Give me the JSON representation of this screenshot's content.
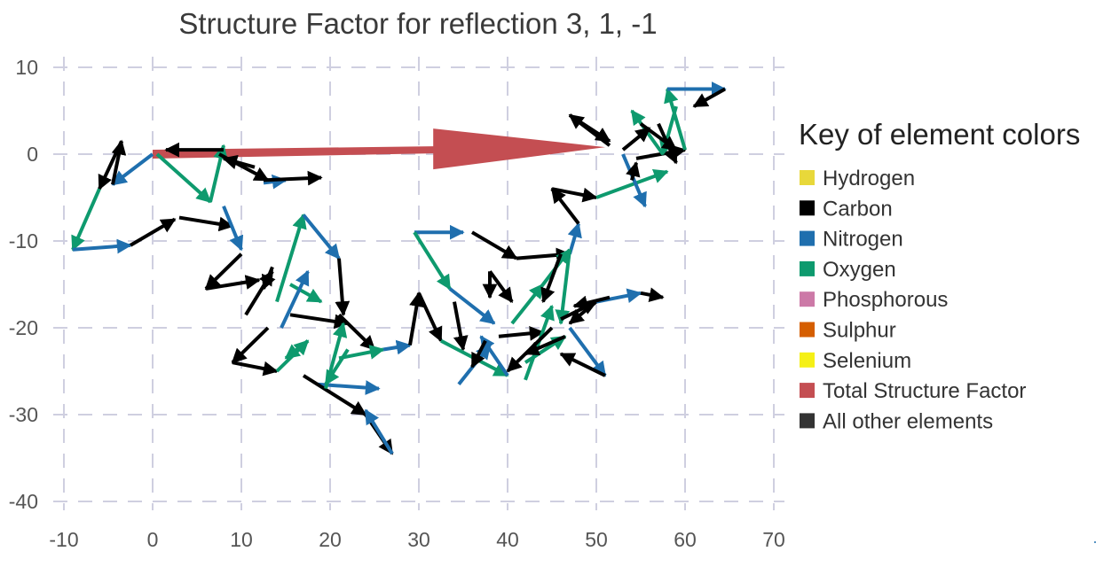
{
  "chart_data": {
    "type": "scatter",
    "title": "Structure Factor for reflection 3, 1, -1",
    "xlim": [
      -10,
      70
    ],
    "ylim": [
      -40,
      10
    ],
    "x_ticks": [
      -10,
      0,
      10,
      20,
      30,
      40,
      50,
      60,
      70
    ],
    "y_ticks": [
      10,
      0,
      -10,
      -20,
      -30,
      -40
    ],
    "x_tick_labels": [
      "-10",
      "0",
      "10",
      "20",
      "30",
      "40",
      "50",
      "60",
      "70"
    ],
    "y_tick_labels": [
      "10",
      "0",
      "-10",
      "-20",
      "-30",
      "-40"
    ],
    "grid": true,
    "legend": {
      "title": "Key of element colors",
      "placement": "right",
      "entries": [
        {
          "label": "Hydrogen",
          "color": "#e8d83a"
        },
        {
          "label": "Carbon",
          "color": "#000000"
        },
        {
          "label": "Nitrogen",
          "color": "#1f6fae"
        },
        {
          "label": "Oxygen",
          "color": "#0e9a6e"
        },
        {
          "label": "Phosphorous",
          "color": "#cc79a7"
        },
        {
          "label": "Sulphur",
          "color": "#d55e00"
        },
        {
          "label": "Selenium",
          "color": "#f5f016"
        },
        {
          "label": "Total Structure Factor",
          "color": "#c44e52"
        },
        {
          "label": "All other elements",
          "color": "#333333"
        }
      ]
    },
    "total_vector": {
      "from": [
        0,
        0
      ],
      "to": [
        51,
        0.8
      ],
      "color": "#c44e52"
    },
    "atom_vectors": [
      {
        "x0": 0,
        "y0": 0,
        "x1": -4.5,
        "y1": -3.5,
        "element": "Nitrogen"
      },
      {
        "x0": -4.5,
        "y0": -3.5,
        "x1": -3.5,
        "y1": 1.5,
        "element": "Carbon"
      },
      {
        "x0": -3.5,
        "y0": 1.5,
        "x1": -6,
        "y1": -4,
        "element": "Carbon"
      },
      {
        "x0": -6,
        "y0": -4,
        "x1": -9,
        "y1": -11,
        "element": "Oxygen"
      },
      {
        "x0": -9,
        "y0": -11,
        "x1": -2.5,
        "y1": -10.5,
        "element": "Nitrogen"
      },
      {
        "x0": -2.5,
        "y0": -10.5,
        "x1": 2.5,
        "y1": -7.5,
        "element": "Carbon"
      },
      {
        "x0": 3,
        "y0": -7.3,
        "x1": 9,
        "y1": -8.3,
        "element": "Carbon"
      },
      {
        "x0": 0.5,
        "y0": 0,
        "x1": 6.5,
        "y1": -5.5,
        "element": "Oxygen"
      },
      {
        "x0": 6.5,
        "y0": -5.5,
        "x1": 8,
        "y1": 1,
        "element": "Oxygen"
      },
      {
        "x0": 8,
        "y0": 0.5,
        "x1": 1.5,
        "y1": 0.5,
        "element": "Carbon"
      },
      {
        "x0": 7.5,
        "y0": 0,
        "x1": 13,
        "y1": -3,
        "element": "Carbon"
      },
      {
        "x0": 11.5,
        "y0": -1.5,
        "x1": 8,
        "y1": -0.5,
        "element": "Carbon"
      },
      {
        "x0": 12.5,
        "y0": -3.3,
        "x1": 15,
        "y1": -3,
        "element": "Nitrogen"
      },
      {
        "x0": 12.5,
        "y0": -3,
        "x1": 19,
        "y1": -2.7,
        "element": "Carbon"
      },
      {
        "x0": 8,
        "y0": -6,
        "x1": 10,
        "y1": -11,
        "element": "Nitrogen"
      },
      {
        "x0": 10,
        "y0": -11.5,
        "x1": 6,
        "y1": -15.5,
        "element": "Carbon"
      },
      {
        "x0": 6,
        "y0": -15.5,
        "x1": 12,
        "y1": -14.5,
        "element": "Carbon"
      },
      {
        "x0": 10.5,
        "y0": -18.5,
        "x1": 13.5,
        "y1": -13.5,
        "element": "Carbon"
      },
      {
        "x0": 13.5,
        "y0": -13,
        "x1": 12.5,
        "y1": -15.5,
        "element": "Carbon"
      },
      {
        "x0": 14,
        "y0": -17,
        "x1": 17,
        "y1": -7,
        "element": "Oxygen"
      },
      {
        "x0": 17,
        "y0": -7,
        "x1": 21,
        "y1": -12,
        "element": "Nitrogen"
      },
      {
        "x0": 21,
        "y0": -12,
        "x1": 21.5,
        "y1": -18.5,
        "element": "Carbon"
      },
      {
        "x0": 21,
        "y0": -18.5,
        "x1": 25,
        "y1": -22.5,
        "element": "Carbon"
      },
      {
        "x0": 15.5,
        "y0": -15,
        "x1": 19,
        "y1": -17,
        "element": "Oxygen"
      },
      {
        "x0": 14.5,
        "y0": -20,
        "x1": 17.5,
        "y1": -13.5,
        "element": "Nitrogen"
      },
      {
        "x0": 15.5,
        "y0": -18.5,
        "x1": 22,
        "y1": -19.5,
        "element": "Carbon"
      },
      {
        "x0": 13,
        "y0": -20,
        "x1": 9,
        "y1": -24,
        "element": "Carbon"
      },
      {
        "x0": 9,
        "y0": -24,
        "x1": 14,
        "y1": -25,
        "element": "Carbon"
      },
      {
        "x0": 14,
        "y0": -25,
        "x1": 17.5,
        "y1": -21.5,
        "element": "Oxygen"
      },
      {
        "x0": 17.5,
        "y0": -21.5,
        "x1": 15,
        "y1": -23.5,
        "element": "Oxygen"
      },
      {
        "x0": 18.5,
        "y0": -26.5,
        "x1": 25.5,
        "y1": -27,
        "element": "Nitrogen"
      },
      {
        "x0": 17,
        "y0": -25.5,
        "x1": 24,
        "y1": -30,
        "element": "Carbon"
      },
      {
        "x0": 24,
        "y0": -30,
        "x1": 27,
        "y1": -34.5,
        "element": "Carbon"
      },
      {
        "x0": 27,
        "y0": -34.5,
        "x1": 24,
        "y1": -29.5,
        "element": "Nitrogen"
      },
      {
        "x0": 19.5,
        "y0": -27,
        "x1": 21.5,
        "y1": -19.5,
        "element": "Oxygen"
      },
      {
        "x0": 22,
        "y0": -22.5,
        "x1": 19.5,
        "y1": -26.5,
        "element": "Oxygen"
      },
      {
        "x0": 21,
        "y0": -23.5,
        "x1": 26,
        "y1": -22.5,
        "element": "Oxygen"
      },
      {
        "x0": 26,
        "y0": -22.5,
        "x1": 29,
        "y1": -22,
        "element": "Nitrogen"
      },
      {
        "x0": 29,
        "y0": -22,
        "x1": 30,
        "y1": -16,
        "element": "Carbon"
      },
      {
        "x0": 30,
        "y0": -16,
        "x1": 32.5,
        "y1": -21.5,
        "element": "Carbon"
      },
      {
        "x0": 29.5,
        "y0": -9,
        "x1": 35,
        "y1": -9,
        "element": "Nitrogen"
      },
      {
        "x0": 29.5,
        "y0": -9,
        "x1": 33.5,
        "y1": -15.5,
        "element": "Oxygen"
      },
      {
        "x0": 33.5,
        "y0": -15.5,
        "x1": 38.5,
        "y1": -19.5,
        "element": "Nitrogen"
      },
      {
        "x0": 36,
        "y0": -9,
        "x1": 41,
        "y1": -12,
        "element": "Carbon"
      },
      {
        "x0": 41,
        "y0": -12,
        "x1": 47,
        "y1": -11.5,
        "element": "Carbon"
      },
      {
        "x0": 47,
        "y0": -11.5,
        "x1": 48,
        "y1": -8,
        "element": "Nitrogen"
      },
      {
        "x0": 48,
        "y0": -8,
        "x1": 45,
        "y1": -4,
        "element": "Carbon"
      },
      {
        "x0": 45,
        "y0": -4,
        "x1": 50,
        "y1": -5,
        "element": "Carbon"
      },
      {
        "x0": 50,
        "y0": -5,
        "x1": 58,
        "y1": -2,
        "element": "Oxygen"
      },
      {
        "x0": 34,
        "y0": -17,
        "x1": 35,
        "y1": -22.5,
        "element": "Carbon"
      },
      {
        "x0": 32.5,
        "y0": -21.5,
        "x1": 40,
        "y1": -25.5,
        "element": "Oxygen"
      },
      {
        "x0": 40,
        "y0": -25.5,
        "x1": 37,
        "y1": -21,
        "element": "Nitrogen"
      },
      {
        "x0": 34.5,
        "y0": -26.5,
        "x1": 38,
        "y1": -22,
        "element": "Nitrogen"
      },
      {
        "x0": 37.5,
        "y0": -21.5,
        "x1": 36,
        "y1": -24.5,
        "element": "Carbon"
      },
      {
        "x0": 38,
        "y0": -13.5,
        "x1": 40.5,
        "y1": -17,
        "element": "Carbon"
      },
      {
        "x0": 38,
        "y0": -13.5,
        "x1": 38,
        "y1": -16.5,
        "element": "Carbon"
      },
      {
        "x0": 39,
        "y0": -21,
        "x1": 44,
        "y1": -20.5,
        "element": "Carbon"
      },
      {
        "x0": 42,
        "y0": -26,
        "x1": 45,
        "y1": -17.5,
        "element": "Oxygen"
      },
      {
        "x0": 40.5,
        "y0": -19.5,
        "x1": 44,
        "y1": -15,
        "element": "Oxygen"
      },
      {
        "x0": 44,
        "y0": -15,
        "x1": 47,
        "y1": -11,
        "element": "Oxygen"
      },
      {
        "x0": 46,
        "y0": -11.5,
        "x1": 44,
        "y1": -17,
        "element": "Carbon"
      },
      {
        "x0": 47,
        "y0": -11,
        "x1": 46,
        "y1": -19.5,
        "element": "Oxygen"
      },
      {
        "x0": 42,
        "y0": -24,
        "x1": 46.5,
        "y1": -21,
        "element": "Oxygen"
      },
      {
        "x0": 46.5,
        "y0": -21,
        "x1": 42,
        "y1": -23,
        "element": "Carbon"
      },
      {
        "x0": 45,
        "y0": -20,
        "x1": 40,
        "y1": -25,
        "element": "Carbon"
      },
      {
        "x0": 47,
        "y0": -20,
        "x1": 51,
        "y1": -25.5,
        "element": "Nitrogen"
      },
      {
        "x0": 51,
        "y0": -25.5,
        "x1": 46,
        "y1": -23,
        "element": "Carbon"
      },
      {
        "x0": 46,
        "y0": -19,
        "x1": 50,
        "y1": -17,
        "element": "Carbon"
      },
      {
        "x0": 50,
        "y0": -17,
        "x1": 47,
        "y1": -19.5,
        "element": "Carbon"
      },
      {
        "x0": 50,
        "y0": -17,
        "x1": 55,
        "y1": -16,
        "element": "Nitrogen"
      },
      {
        "x0": 55,
        "y0": -16,
        "x1": 57.5,
        "y1": -16.5,
        "element": "Carbon"
      },
      {
        "x0": 51.5,
        "y0": -16.5,
        "x1": 47.5,
        "y1": -17.5,
        "element": "Carbon"
      },
      {
        "x0": 53,
        "y0": 0,
        "x1": 55.5,
        "y1": -6,
        "element": "Nitrogen"
      },
      {
        "x0": 54,
        "y0": -3,
        "x1": 54.5,
        "y1": -1,
        "element": "Carbon"
      },
      {
        "x0": 54.5,
        "y0": -0.5,
        "x1": 60,
        "y1": 0.5,
        "element": "Carbon"
      },
      {
        "x0": 60,
        "y0": 0.5,
        "x1": 58,
        "y1": 7.5,
        "element": "Oxygen"
      },
      {
        "x0": 58,
        "y0": 7.5,
        "x1": 64.5,
        "y1": 7.5,
        "element": "Nitrogen"
      },
      {
        "x0": 64.5,
        "y0": 7.5,
        "x1": 61,
        "y1": 5.5,
        "element": "Carbon"
      },
      {
        "x0": 59,
        "y0": 5.5,
        "x1": 57.5,
        "y1": 0,
        "element": "Oxygen"
      },
      {
        "x0": 57.5,
        "y0": 0,
        "x1": 54,
        "y1": 5,
        "element": "Oxygen"
      },
      {
        "x0": 55,
        "y0": 3.5,
        "x1": 59,
        "y1": 0.5,
        "element": "Carbon"
      },
      {
        "x0": 57,
        "y0": 3.5,
        "x1": 59,
        "y1": -1,
        "element": "Carbon"
      },
      {
        "x0": 51.5,
        "y0": 1,
        "x1": 47,
        "y1": 4.5,
        "element": "Carbon"
      },
      {
        "x0": 47,
        "y0": 4.5,
        "x1": 51.5,
        "y1": 1.5,
        "element": "Carbon"
      },
      {
        "x0": 53,
        "y0": 0.5,
        "x1": 56,
        "y1": 3,
        "element": "Carbon"
      }
    ]
  }
}
